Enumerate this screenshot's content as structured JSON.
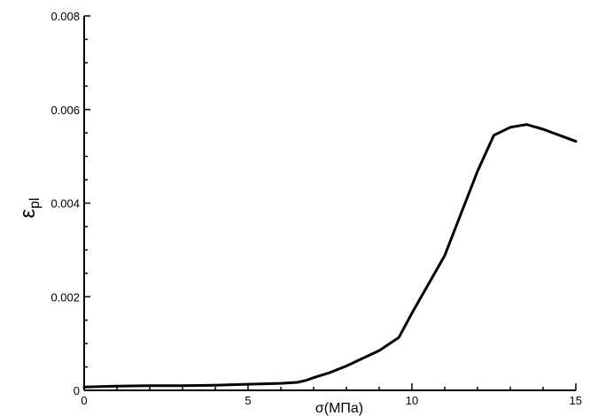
{
  "chart_data": {
    "type": "line",
    "title": "",
    "xlabel": "σ(МПа)",
    "ylabel_main": "ε",
    "ylabel_sub": "pl",
    "xlim": [
      0,
      15
    ],
    "ylim": [
      0,
      0.008
    ],
    "x_ticks": [
      "0",
      "5",
      "10",
      "15"
    ],
    "y_ticks": [
      "0",
      "0.002",
      "0.004",
      "0.006",
      "0.008"
    ],
    "grid": false,
    "series": [
      {
        "color": "#000000",
        "x": [
          0,
          1,
          2,
          3,
          4,
          5,
          6,
          6.5,
          6.8,
          7,
          7.5,
          8,
          9,
          9.6,
          10,
          11,
          12,
          12.5,
          13,
          13.5,
          14,
          15
        ],
        "y": [
          7e-05,
          9e-05,
          0.0001,
          0.0001,
          0.00011,
          0.00013,
          0.00015,
          0.00017,
          0.00022,
          0.00027,
          0.00038,
          0.00052,
          0.00085,
          0.00113,
          0.00165,
          0.00288,
          0.00468,
          0.00545,
          0.00562,
          0.00568,
          0.00558,
          0.00532
        ]
      }
    ]
  }
}
